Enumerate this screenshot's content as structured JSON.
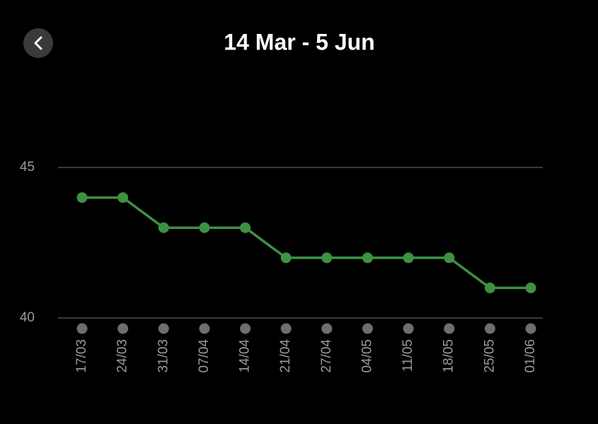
{
  "chart_data": {
    "type": "line",
    "title": "14 Mar - 5 Jun",
    "categories": [
      "17/03",
      "24/03",
      "31/03",
      "07/04",
      "14/04",
      "21/04",
      "27/04",
      "04/05",
      "11/05",
      "18/05",
      "25/05",
      "01/06"
    ],
    "series": [
      {
        "color": "#3e9142",
        "values": [
          44,
          44,
          43,
          43,
          43,
          42,
          42,
          42,
          42,
          42,
          41,
          41
        ]
      }
    ],
    "ylim": [
      40,
      45
    ],
    "yticks": [
      40,
      45
    ],
    "grid": true
  }
}
